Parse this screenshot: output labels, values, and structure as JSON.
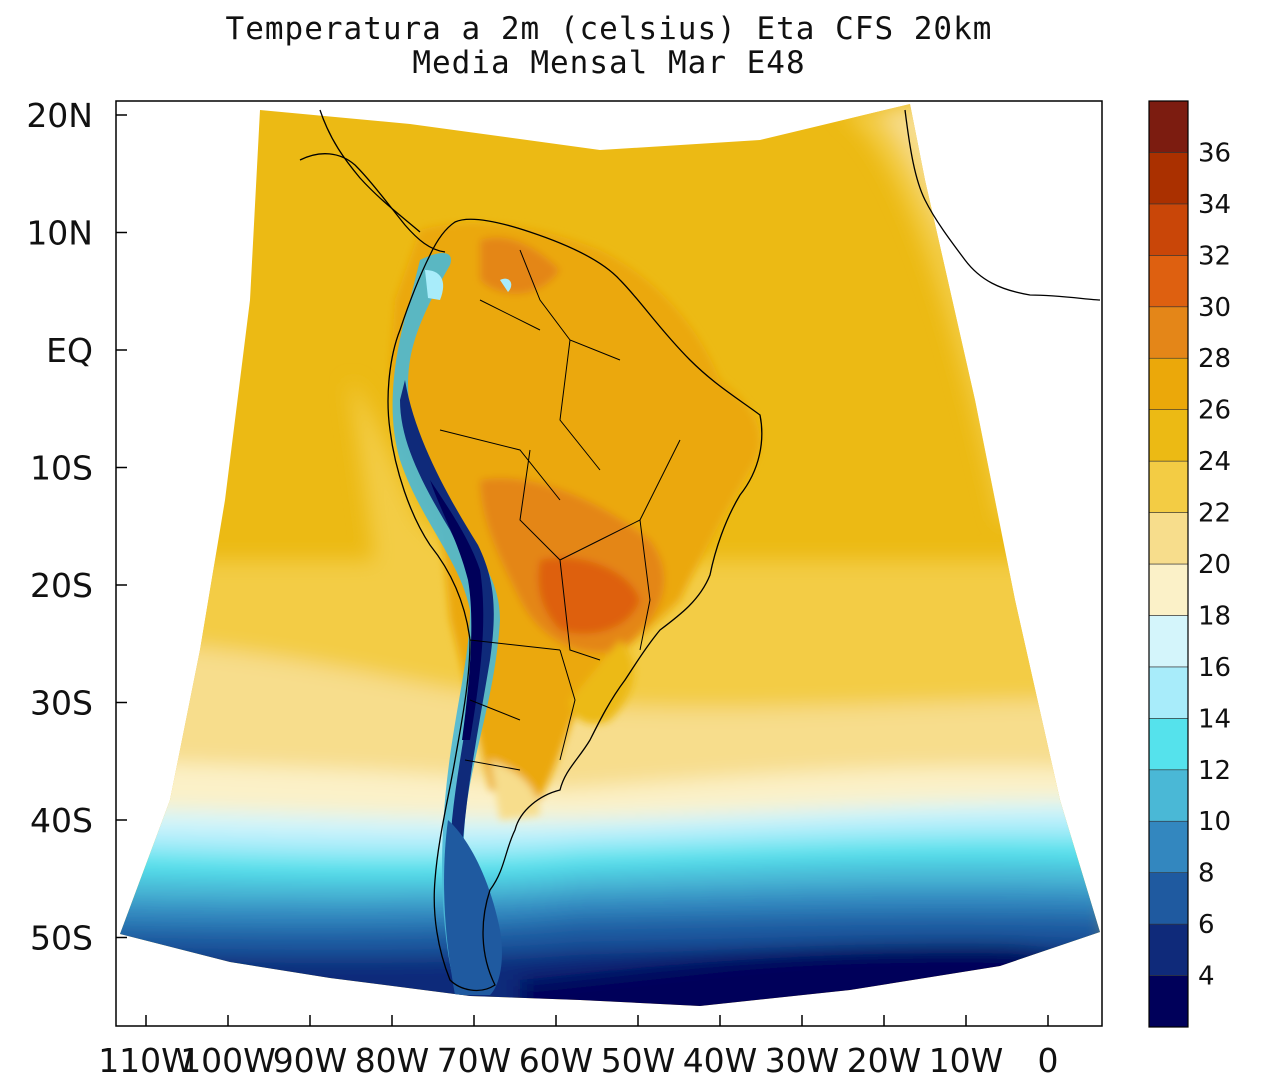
{
  "title": {
    "line1": "Temperatura a 2m (celsius) Eta CFS 20km",
    "line2": "Media Mensal Mar  E48"
  },
  "axes": {
    "lat_ticks": [
      {
        "label": "20N",
        "lat": 20
      },
      {
        "label": "10N",
        "lat": 10
      },
      {
        "label": "EQ",
        "lat": 0
      },
      {
        "label": "10S",
        "lat": -10
      },
      {
        "label": "20S",
        "lat": -20
      },
      {
        "label": "30S",
        "lat": -30
      },
      {
        "label": "40S",
        "lat": -40
      },
      {
        "label": "50S",
        "lat": -50
      }
    ],
    "lon_ticks": [
      {
        "label": "110W",
        "lon": -110
      },
      {
        "label": "100W",
        "lon": -100
      },
      {
        "label": "90W",
        "lon": -90
      },
      {
        "label": "80W",
        "lon": -80
      },
      {
        "label": "70W",
        "lon": -70
      },
      {
        "label": "60W",
        "lon": -60
      },
      {
        "label": "50W",
        "lon": -50
      },
      {
        "label": "40W",
        "lon": -40
      },
      {
        "label": "30W",
        "lon": -30
      },
      {
        "label": "20W",
        "lon": -20
      },
      {
        "label": "10W",
        "lon": -10
      },
      {
        "label": "0",
        "lon": 0
      }
    ]
  },
  "colorbar": {
    "colors": [
      "#00005a",
      "#0f2a7a",
      "#1f5aa0",
      "#3387bf",
      "#4ab8d6",
      "#55e2ec",
      "#a8ecfa",
      "#d4f5fb",
      "#fbf1c8",
      "#f7dd8c",
      "#f3cc44",
      "#ecba14",
      "#eba80a",
      "#e48618",
      "#de6010",
      "#c94608",
      "#aa3000",
      "#7c1c10"
    ],
    "labels": [
      "4",
      "6",
      "8",
      "10",
      "12",
      "14",
      "16",
      "18",
      "20",
      "22",
      "24",
      "26",
      "28",
      "30",
      "32",
      "34",
      "36"
    ],
    "units": "celsius"
  }
}
